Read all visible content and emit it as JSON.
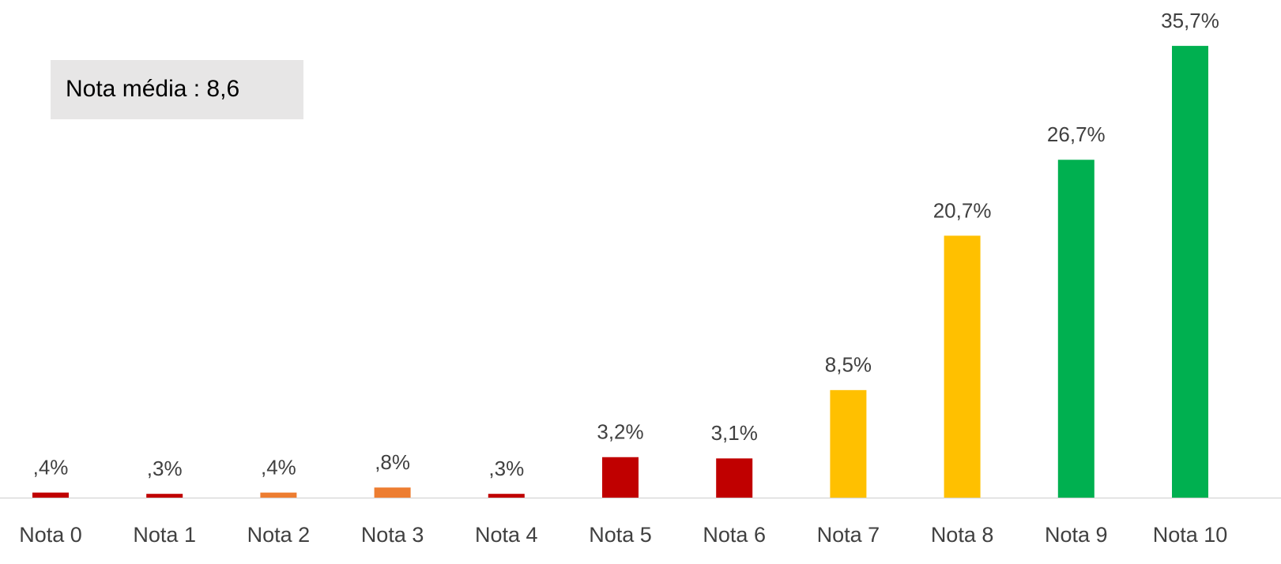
{
  "chart_data": {
    "type": "bar",
    "annotation": "Nota média : 8,6",
    "categories": [
      "Nota 0",
      "Nota 1",
      "Nota 2",
      "Nota 3",
      "Nota 4",
      "Nota 5",
      "Nota 6",
      "Nota 7",
      "Nota 8",
      "Nota 9",
      "Nota 10"
    ],
    "values": [
      0.4,
      0.3,
      0.4,
      0.8,
      0.3,
      3.2,
      3.1,
      8.5,
      20.7,
      26.7,
      35.7
    ],
    "value_labels": [
      ",4%",
      ",3%",
      ",4%",
      ",8%",
      ",3%",
      "3,2%",
      "3,1%",
      "8,5%",
      "20,7%",
      "26,7%",
      "35,7%"
    ],
    "colors": [
      "#c00000",
      "#c00000",
      "#ed7d31",
      "#ed7d31",
      "#c00000",
      "#c00000",
      "#c00000",
      "#ffc000",
      "#ffc000",
      "#00b050",
      "#00b050"
    ]
  }
}
